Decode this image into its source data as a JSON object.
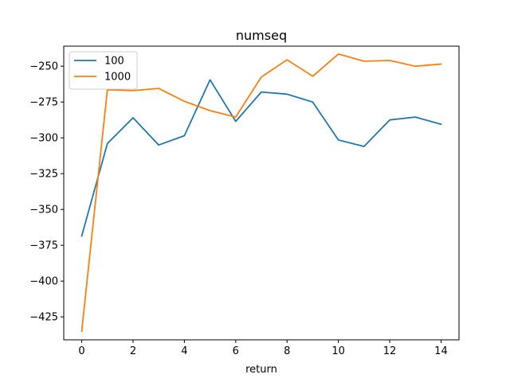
{
  "chart_data": {
    "type": "line",
    "title": "numseq",
    "xlabel": "return",
    "ylabel": "",
    "xlim": [
      -0.7,
      14.7
    ],
    "ylim": [
      -441,
      -236
    ],
    "xticks": [
      0,
      2,
      4,
      6,
      8,
      10,
      12,
      14
    ],
    "yticks": [
      -425,
      -400,
      -375,
      -350,
      -325,
      -300,
      -275,
      -250
    ],
    "x": [
      0,
      1,
      2,
      3,
      4,
      5,
      6,
      7,
      8,
      9,
      10,
      11,
      12,
      13,
      14
    ],
    "series": [
      {
        "name": "100",
        "color": "#1f77b4",
        "values": [
          -368.5,
          -304,
          -286,
          -305,
          -298.5,
          -259.5,
          -288.5,
          -268,
          -269.5,
          -275,
          -301.5,
          -306,
          -287.5,
          -285.5,
          -290.5
        ]
      },
      {
        "name": "1000",
        "color": "#ff7f0e",
        "values": [
          -435,
          -266.5,
          -267,
          -265.5,
          -274.5,
          -281,
          -285.5,
          -257.5,
          -245.5,
          -257,
          -241.5,
          -246.5,
          -246,
          -250,
          -248.5
        ]
      }
    ],
    "legend": "top-left",
    "grid": false
  }
}
